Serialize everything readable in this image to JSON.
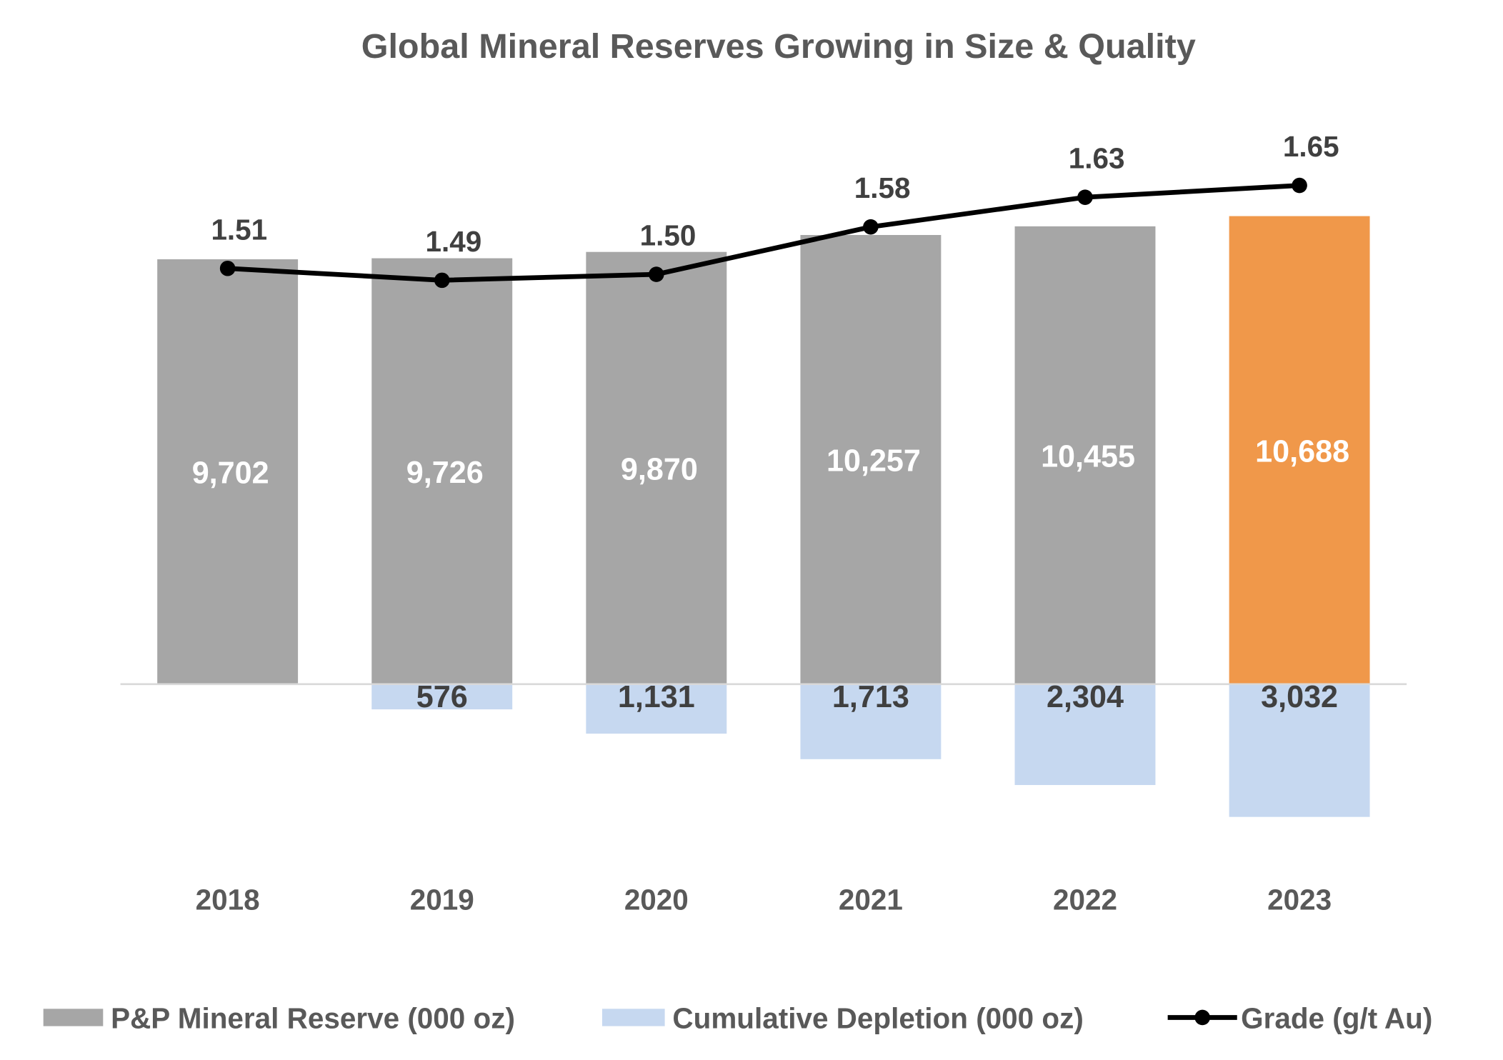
{
  "chart_data": {
    "type": "bar",
    "title": "Global Mineral Reserves Growing in Size & Quality",
    "categories": [
      "2018",
      "2019",
      "2020",
      "2021",
      "2022",
      "2023"
    ],
    "ylim": [
      -4180,
      13420
    ],
    "y2lim": [
      0.5,
      1.8
    ],
    "grid": false,
    "legend_position": "bottom",
    "series": [
      {
        "name": "P&P Mineral Reserve (000 oz)",
        "kind": "bar",
        "values": [
          9702,
          9726,
          9870,
          10257,
          10455,
          10688
        ],
        "labels": [
          "9,702",
          "9,726",
          "9,870",
          "10,257",
          "10,455",
          "10,688"
        ],
        "color": "#a6a6a6",
        "highlight_color": "#f0984a",
        "highlight_index": 5
      },
      {
        "name": "Cumulative Depletion (000 oz)",
        "kind": "bar-negative",
        "values": [
          0,
          576,
          1131,
          1713,
          2304,
          3032
        ],
        "labels": [
          "",
          "576",
          "1,131",
          "1,713",
          "2,304",
          "3,032"
        ],
        "color": "#c6d8f0"
      },
      {
        "name": "Grade (g/t Au)",
        "kind": "line",
        "axis": "secondary",
        "values": [
          1.51,
          1.49,
          1.5,
          1.58,
          1.63,
          1.65
        ],
        "labels": [
          "1.51",
          "1.49",
          "1.50",
          "1.58",
          "1.63",
          "1.65"
        ],
        "color": "#000000"
      }
    ]
  }
}
